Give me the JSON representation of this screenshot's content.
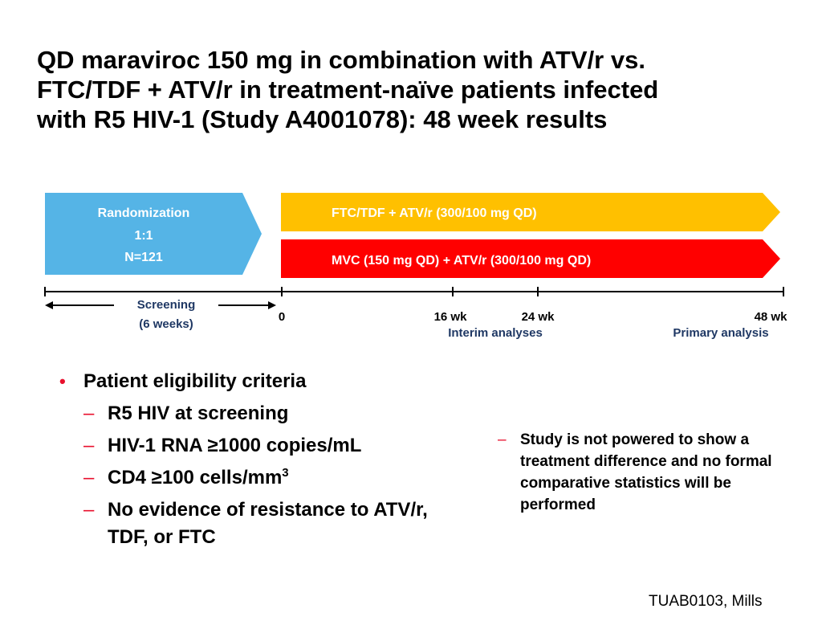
{
  "title": {
    "line1": "QD maraviroc 150 mg in combination with ATV/r vs.",
    "line2": "FTC/TDF + ATV/r in treatment-naïve patients infected",
    "line3": "with R5 HIV-1 (Study A4001078): 48 week results"
  },
  "diagram": {
    "randomization": {
      "line1": "Randomization",
      "line2": "1:1",
      "line3": "N=121"
    },
    "arm_top": "FTC/TDF + ATV/r (300/100 mg QD)",
    "arm_bottom": "MVC (150 mg QD) + ATV/r (300/100 mg QD)",
    "screening": {
      "line1": "Screening",
      "line2": "(6 weeks)"
    },
    "ticks": [
      "0",
      "16 wk",
      "24 wk",
      "48 wk"
    ],
    "interim": "Interim analyses",
    "primary": "Primary analysis",
    "colors": {
      "randomization": "#55b4e6",
      "arm_top": "#ffc000",
      "arm_bottom": "#ff0000",
      "label_blue": "#1f3864"
    }
  },
  "criteria": {
    "heading": "Patient eligibility criteria",
    "items": [
      "R5 HIV at screening",
      "HIV-1 RNA ≥1000 copies/mL",
      "CD4 ≥100 cells/mm",
      "No evidence of resistance to ATV/r, TDF, or FTC"
    ],
    "cd4_superscript": "3"
  },
  "note": "Study is not powered to show a treatment difference and no formal comparative statistics will be performed",
  "footer": "TUAB0103, Mills"
}
